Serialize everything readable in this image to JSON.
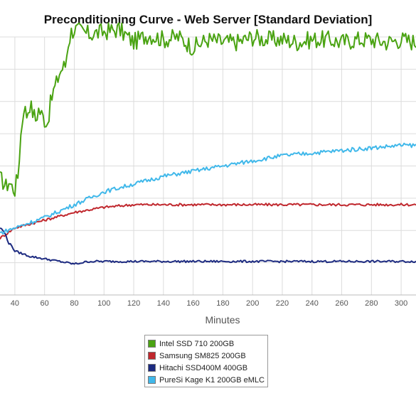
{
  "chart_data": {
    "type": "line",
    "title": "Preconditioning Curve - Web Server [Standard Deviation]",
    "xlabel": "Minutes",
    "ylabel": "",
    "x_visible_range": [
      30,
      310
    ],
    "y_range": [
      0,
      10
    ],
    "x_ticks": [
      40,
      60,
      80,
      100,
      120,
      140,
      160,
      180,
      200,
      220,
      240,
      260,
      280,
      300
    ],
    "grid": true,
    "legend_position": "bottom",
    "series": [
      {
        "name": "Intel SSD 710 200GB",
        "color": "#4aa312",
        "x": [
          30,
          32,
          34,
          36,
          38,
          40,
          42,
          44,
          46,
          48,
          50,
          52,
          54,
          56,
          58,
          60,
          62,
          64,
          66,
          68,
          70,
          72,
          74,
          76,
          78,
          80,
          90,
          100,
          110,
          120,
          130,
          140,
          150,
          160,
          170,
          180,
          190,
          200,
          210,
          220,
          230,
          240,
          250,
          260,
          270,
          280,
          290,
          300,
          310
        ],
        "y": [
          4.5,
          4.4,
          4.2,
          4.4,
          4.2,
          4.1,
          4.6,
          6.2,
          7.3,
          7.0,
          7.4,
          7.1,
          6.8,
          7.2,
          7.0,
          6.8,
          6.7,
          7.4,
          7.9,
          8.2,
          8.6,
          8.8,
          8.9,
          9.8,
          10.2,
          10.3,
          10.1,
          10.2,
          10.3,
          9.8,
          10.1,
          9.9,
          10.0,
          9.6,
          9.9,
          9.8,
          9.8,
          10.0,
          9.9,
          9.9,
          9.8,
          9.9,
          9.9,
          9.8,
          9.9,
          9.9,
          9.8,
          9.9,
          9.8
        ]
      },
      {
        "name": "Samsung SM825 200GB",
        "color": "#c0272d",
        "x": [
          30,
          40,
          60,
          80,
          100,
          120,
          140,
          160,
          180,
          200,
          220,
          240,
          260,
          280,
          300,
          310
        ],
        "y": [
          2.2,
          2.6,
          2.9,
          3.2,
          3.4,
          3.5,
          3.5,
          3.5,
          3.5,
          3.5,
          3.5,
          3.5,
          3.5,
          3.5,
          3.5,
          3.5
        ]
      },
      {
        "name": "Hitachi SSD400M 400GB",
        "color": "#1c2a80",
        "x": [
          30,
          32,
          34,
          36,
          38,
          40,
          50,
          60,
          70,
          80,
          90,
          100,
          120,
          140,
          160,
          180,
          200,
          220,
          240,
          260,
          280,
          300,
          310
        ],
        "y": [
          2.6,
          2.5,
          2.3,
          2.0,
          1.9,
          1.7,
          1.5,
          1.4,
          1.3,
          1.2,
          1.3,
          1.3,
          1.3,
          1.3,
          1.3,
          1.3,
          1.3,
          1.3,
          1.3,
          1.3,
          1.3,
          1.3,
          1.3
        ]
      },
      {
        "name": "PureSi Kage K1 200GB eMLC",
        "color": "#40b8ea",
        "x": [
          30,
          40,
          60,
          80,
          100,
          120,
          140,
          160,
          180,
          200,
          220,
          240,
          260,
          280,
          300,
          310
        ],
        "y": [
          2.4,
          2.6,
          3.0,
          3.5,
          4.0,
          4.3,
          4.6,
          4.8,
          5.0,
          5.2,
          5.4,
          5.5,
          5.6,
          5.7,
          5.8,
          5.8
        ]
      }
    ]
  }
}
